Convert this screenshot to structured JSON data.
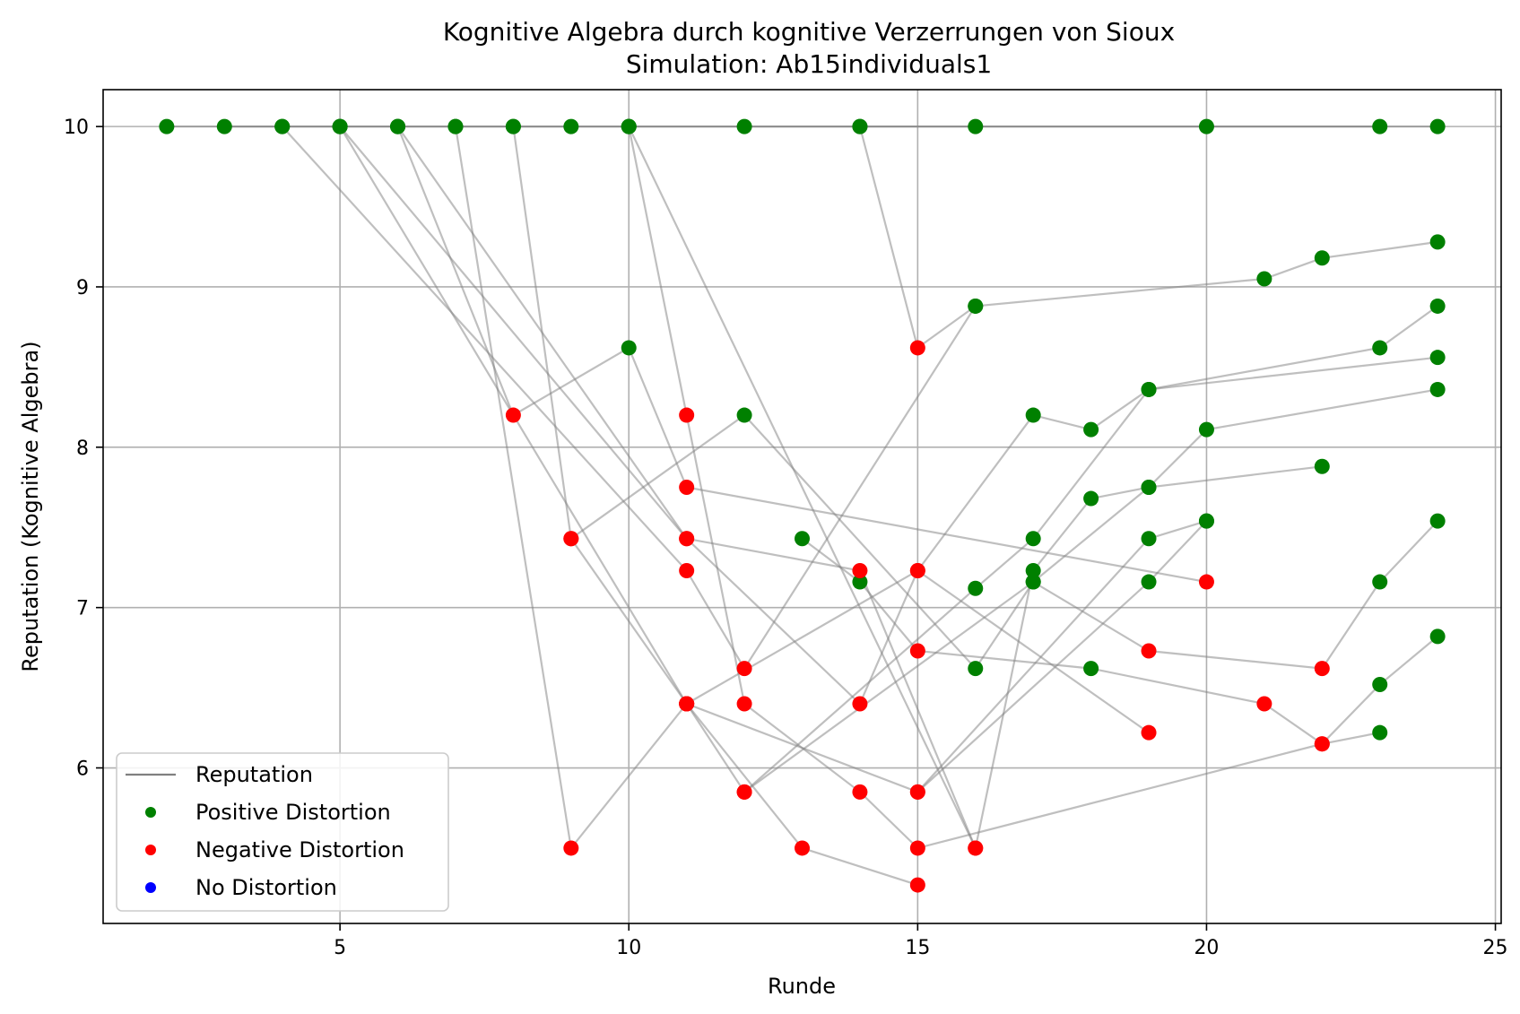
{
  "chart_data": {
    "type": "scatter",
    "title": "Kognitive Algebra durch kognitive Verzerrungen von Sioux",
    "subtitle": "Simulation: Ab15individuals1",
    "xlabel": "Runde",
    "ylabel": "Reputation (Kognitive Algebra)",
    "xlim": [
      0.9,
      25.1
    ],
    "ylim": [
      5.03,
      10.23
    ],
    "xticks": [
      5,
      10,
      15,
      20,
      25
    ],
    "yticks": [
      6,
      7,
      8,
      9,
      10
    ],
    "grid": true,
    "legend": {
      "placement": "lower-left",
      "entries": [
        {
          "label": "Reputation",
          "marker": "line",
          "color": "#808080"
        },
        {
          "label": "Positive Distortion",
          "marker": "dot",
          "color": "#008000"
        },
        {
          "label": "Negative Distortion",
          "marker": "dot",
          "color": "#ff0000"
        },
        {
          "label": "No Distortion",
          "marker": "dot",
          "color": "#0000ff"
        }
      ]
    },
    "colors": {
      "positive": "#008000",
      "negative": "#ff0000",
      "none": "#0000ff",
      "line": "#808080"
    },
    "series": [
      {
        "points": [
          [
            2,
            10,
            "pos"
          ],
          [
            24,
            10,
            "pos"
          ]
        ]
      },
      {
        "points": [
          [
            3,
            10,
            "pos"
          ],
          [
            4,
            10,
            "pos"
          ],
          [
            5,
            10,
            "pos"
          ],
          [
            6,
            10,
            "pos"
          ],
          [
            7,
            10,
            "pos"
          ],
          [
            8,
            10,
            "pos"
          ],
          [
            9,
            10,
            "pos"
          ],
          [
            10,
            10,
            "pos"
          ],
          [
            12,
            10,
            "pos"
          ],
          [
            14,
            10,
            "pos"
          ],
          [
            16,
            10,
            "pos"
          ],
          [
            20,
            10,
            "pos"
          ],
          [
            23,
            10,
            "pos"
          ]
        ]
      },
      {
        "points": [
          [
            14,
            10,
            "pos"
          ],
          [
            15,
            8.62,
            "neg"
          ],
          [
            16,
            8.88,
            "pos"
          ],
          [
            21,
            9.05,
            "pos"
          ],
          [
            22,
            9.18,
            "pos"
          ],
          [
            24,
            9.28,
            "pos"
          ]
        ]
      },
      {
        "points": [
          [
            8,
            10,
            "pos"
          ],
          [
            9,
            7.43,
            "neg"
          ],
          [
            11,
            6.4,
            "neg"
          ],
          [
            12,
            5.85,
            "neg"
          ],
          [
            17,
            7.16,
            "pos"
          ],
          [
            19,
            7.75,
            "pos"
          ],
          [
            22,
            7.88,
            "pos"
          ]
        ]
      },
      {
        "points": [
          [
            5,
            10,
            "pos"
          ],
          [
            11,
            7.43,
            "neg"
          ],
          [
            14,
            6.4,
            "neg"
          ],
          [
            15,
            7.23,
            "neg"
          ],
          [
            17,
            8.2,
            "pos"
          ],
          [
            18,
            8.11,
            "pos"
          ],
          [
            19,
            8.36,
            "pos"
          ],
          [
            23,
            8.62,
            "pos"
          ],
          [
            24,
            8.88,
            "pos"
          ]
        ]
      },
      {
        "points": [
          [
            6,
            10,
            "pos"
          ],
          [
            8,
            8.2,
            "neg"
          ],
          [
            10,
            8.62,
            "pos"
          ],
          [
            11,
            7.75,
            "neg"
          ],
          [
            20,
            7.16,
            "neg"
          ]
        ]
      },
      {
        "points": [
          [
            10,
            10,
            "pos"
          ],
          [
            16,
            5.5,
            "neg"
          ],
          [
            17,
            7.23,
            "pos"
          ],
          [
            18,
            7.68,
            "pos"
          ],
          [
            19,
            7.75,
            "pos"
          ],
          [
            20,
            8.11,
            "pos"
          ],
          [
            24,
            8.36,
            "pos"
          ]
        ]
      },
      {
        "points": [
          [
            7,
            10,
            "pos"
          ],
          [
            9,
            5.5,
            "neg"
          ],
          [
            11,
            6.4,
            "neg"
          ],
          [
            15,
            5.85,
            "neg"
          ],
          [
            19,
            7.16,
            "pos"
          ],
          [
            20,
            7.54,
            "pos"
          ]
        ]
      },
      {
        "points": [
          [
            10,
            10,
            "pos"
          ],
          [
            11,
            8.2,
            "neg"
          ],
          [
            12,
            6.4,
            "neg"
          ],
          [
            14,
            5.85,
            "neg"
          ],
          [
            15,
            5.5,
            "neg"
          ],
          [
            22,
            6.15,
            "neg"
          ],
          [
            23,
            6.52,
            "pos"
          ],
          [
            24,
            6.82,
            "pos"
          ]
        ]
      },
      {
        "points": [
          [
            4,
            10,
            "pos"
          ],
          [
            11,
            7.23,
            "neg"
          ],
          [
            12,
            6.62,
            "neg"
          ],
          [
            16,
            8.88,
            "pos"
          ]
        ]
      },
      {
        "points": [
          [
            5,
            10,
            "pos"
          ],
          [
            11,
            6.4,
            "neg"
          ],
          [
            13,
            5.5,
            "neg"
          ],
          [
            15,
            5.27,
            "neg"
          ]
        ]
      },
      {
        "points": [
          [
            9,
            7.43,
            "neg"
          ],
          [
            12,
            8.2,
            "pos"
          ],
          [
            16,
            6.62,
            "pos"
          ],
          [
            17,
            7.16,
            "pos"
          ],
          [
            19,
            6.73,
            "neg"
          ],
          [
            22,
            6.62,
            "neg"
          ],
          [
            23,
            7.16,
            "pos"
          ],
          [
            24,
            7.54,
            "pos"
          ]
        ]
      },
      {
        "points": [
          [
            11,
            6.4,
            "neg"
          ],
          [
            15,
            7.23,
            "neg"
          ],
          [
            19,
            6.22,
            "neg"
          ]
        ]
      },
      {
        "points": [
          [
            12,
            5.85,
            "neg"
          ],
          [
            16,
            7.12,
            "pos"
          ],
          [
            17,
            7.43,
            "pos"
          ],
          [
            19,
            8.36,
            "pos"
          ],
          [
            24,
            8.56,
            "pos"
          ]
        ]
      },
      {
        "points": [
          [
            13,
            7.43,
            "pos"
          ],
          [
            14,
            7.16,
            "pos"
          ],
          [
            15,
            6.73,
            "neg"
          ],
          [
            18,
            6.62,
            "pos"
          ],
          [
            21,
            6.4,
            "neg"
          ],
          [
            22,
            6.15,
            "neg"
          ],
          [
            23,
            6.22,
            "pos"
          ]
        ]
      },
      {
        "points": [
          [
            15,
            5.85,
            "neg"
          ],
          [
            19,
            7.43,
            "pos"
          ],
          [
            20,
            7.54,
            "pos"
          ]
        ]
      },
      {
        "points": [
          [
            6,
            10,
            "pos"
          ],
          [
            11,
            7.43,
            "neg"
          ],
          [
            14,
            7.23,
            "neg"
          ],
          [
            16,
            5.5,
            "neg"
          ]
        ]
      }
    ]
  }
}
